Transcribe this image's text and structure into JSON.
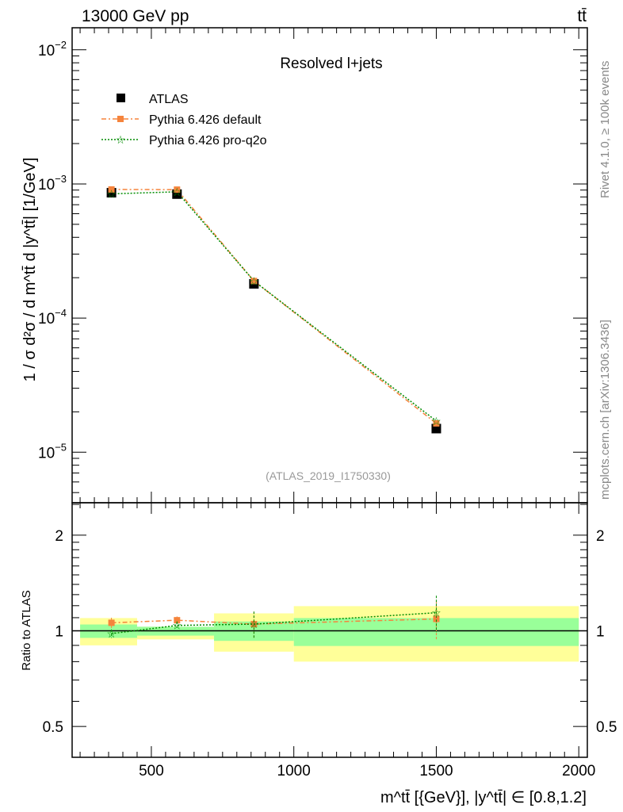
{
  "header": {
    "energy_label": "13000 GeV pp",
    "process_label": "tt̄"
  },
  "side_labels": {
    "rivet": "Rivet 4.1.0, ≥ 100k events",
    "mcplots": "mcplots.cern.ch [arXiv:1306.3436]"
  },
  "colors": {
    "atlas": "#000000",
    "default": "#f5843c",
    "proq2o": "#008c00",
    "band_inner": "#99ff99",
    "band_outer": "#ffff99"
  },
  "chart_data": [
    {
      "type": "line",
      "title": "Resolved l+jets",
      "watermark": "(ATLAS_2019_I1750330)",
      "ylabel": "1 / σ d²σ / d m^tt̄ d |y^tt̄| [1/GeV]",
      "yscale": "log",
      "ylim": [
        4.2e-06,
        0.0146
      ],
      "xlim": [
        222,
        2030
      ],
      "yticks": [
        {
          "v": 0.01,
          "m": "10",
          "e": "−2"
        },
        {
          "v": 0.001,
          "m": "10",
          "e": "−3"
        },
        {
          "v": 0.0001,
          "m": "10",
          "e": "−4"
        },
        {
          "v": 1e-05,
          "m": "10",
          "e": "−5"
        }
      ],
      "legend": [
        "ATLAS",
        "Pythia 6.426 default",
        "Pythia 6.426 pro-q2o"
      ],
      "legend_position": "top-left",
      "x": [
        360,
        590,
        860,
        1500
      ],
      "bins": [
        [
          250,
          450
        ],
        [
          450,
          720
        ],
        [
          720,
          1000
        ],
        [
          1000,
          2000
        ]
      ],
      "series": [
        {
          "name": "ATLAS",
          "values": [
            0.00086,
            0.00084,
            0.00018,
            1.5e-05
          ]
        },
        {
          "name": "Pythia 6.426 default",
          "values": [
            0.00091,
            0.000907,
            0.000189,
            1.64e-05
          ]
        },
        {
          "name": "Pythia 6.426 pro-q2o",
          "values": [
            0.000843,
            0.000874,
            0.000189,
            1.71e-05
          ]
        }
      ]
    },
    {
      "type": "line",
      "ylabel": "Ratio to ATLAS",
      "yscale": "log",
      "ylim": [
        0.4,
        2.53
      ],
      "yticks": [
        {
          "v": 2,
          "label": "2"
        },
        {
          "v": 1,
          "label": "1"
        },
        {
          "v": 0.5,
          "label": "0.5"
        }
      ],
      "xlabel": "m^tt̄ [{GeV}], |y^tt̄| ∈ [0.8,1.2]",
      "xticks": [
        500,
        1000,
        1500,
        2000
      ],
      "xtick_labels": [
        "500",
        "1000",
        "1500",
        "2000"
      ],
      "bins": [
        [
          250,
          450
        ],
        [
          450,
          720
        ],
        [
          720,
          1000
        ],
        [
          1000,
          2000
        ]
      ],
      "band_inner": [
        [
          0.95,
          1.047
        ],
        [
          0.966,
          1.03
        ],
        [
          0.93,
          1.07
        ],
        [
          0.896,
          1.097
        ]
      ],
      "band_outer": [
        [
          0.9,
          1.097
        ],
        [
          0.94,
          1.03
        ],
        [
          0.86,
          1.135
        ],
        [
          0.8,
          1.196
        ]
      ],
      "x": [
        360,
        590,
        860,
        1500
      ],
      "series": [
        {
          "name": "Pythia 6.426 default",
          "values": [
            1.06,
            1.08,
            1.05,
            1.09
          ],
          "err": [
            0.04,
            0.03,
            0.1,
            0.15
          ]
        },
        {
          "name": "Pythia 6.426 pro-q2o",
          "values": [
            0.98,
            1.04,
            1.05,
            1.14
          ],
          "err": [
            0.03,
            0.03,
            0.1,
            0.15
          ]
        }
      ]
    }
  ]
}
